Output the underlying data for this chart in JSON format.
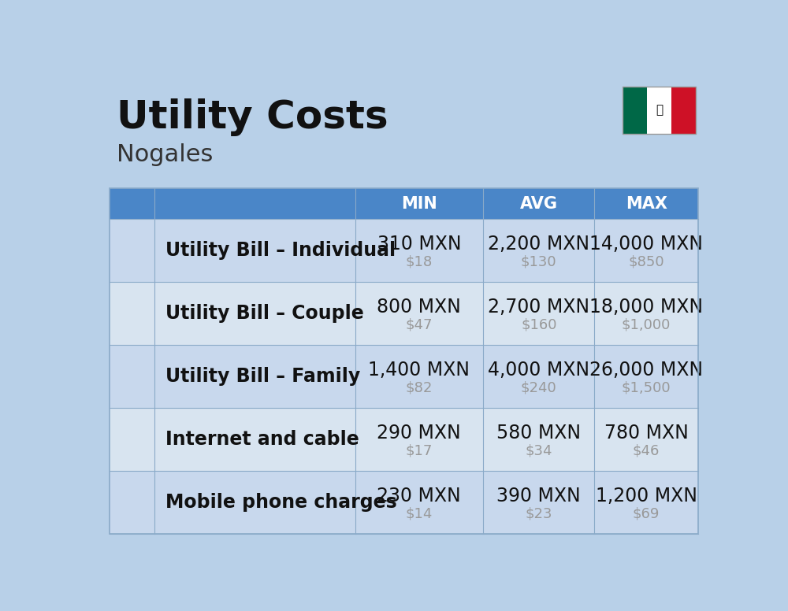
{
  "title": "Utility Costs",
  "subtitle": "Nogales",
  "background_color": "#b8d0e8",
  "header_bg_color": "#4a86c8",
  "header_text_color": "#ffffff",
  "row_bg_colors": [
    "#c8d8ed",
    "#d8e4f0"
  ],
  "col_header_labels": [
    "MIN",
    "AVG",
    "MAX"
  ],
  "rows": [
    {
      "label": "Utility Bill – Individual",
      "min_mxn": "310 MXN",
      "min_usd": "$18",
      "avg_mxn": "2,200 MXN",
      "avg_usd": "$130",
      "max_mxn": "14,000 MXN",
      "max_usd": "$850"
    },
    {
      "label": "Utility Bill – Couple",
      "min_mxn": "800 MXN",
      "min_usd": "$47",
      "avg_mxn": "2,700 MXN",
      "avg_usd": "$160",
      "max_mxn": "18,000 MXN",
      "max_usd": "$1,000"
    },
    {
      "label": "Utility Bill – Family",
      "min_mxn": "1,400 MXN",
      "min_usd": "$82",
      "avg_mxn": "4,000 MXN",
      "avg_usd": "$240",
      "max_mxn": "26,000 MXN",
      "max_usd": "$1,500"
    },
    {
      "label": "Internet and cable",
      "min_mxn": "290 MXN",
      "min_usd": "$17",
      "avg_mxn": "580 MXN",
      "avg_usd": "$34",
      "max_mxn": "780 MXN",
      "max_usd": "$46"
    },
    {
      "label": "Mobile phone charges",
      "min_mxn": "230 MXN",
      "min_usd": "$14",
      "avg_mxn": "390 MXN",
      "avg_usd": "$23",
      "max_mxn": "1,200 MXN",
      "max_usd": "$69"
    }
  ],
  "title_fontsize": 36,
  "subtitle_fontsize": 22,
  "header_fontsize": 15,
  "cell_mxn_fontsize": 17,
  "cell_usd_fontsize": 13,
  "label_fontsize": 17,
  "divider_color": "#8aaac8",
  "usd_color": "#999999",
  "mxn_color": "#111111",
  "label_color": "#111111",
  "flag_green": "#006847",
  "flag_white": "#FFFFFF",
  "flag_red": "#CE1126"
}
